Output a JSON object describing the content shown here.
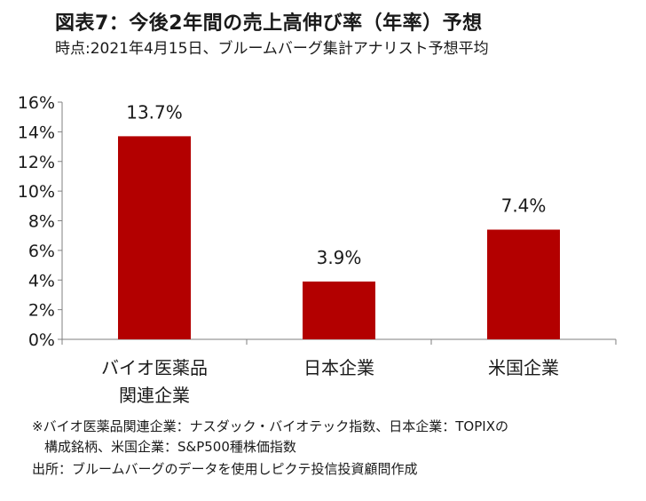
{
  "title": "図表7：今後2年間の売上高伸び率（年率）予想",
  "subtitle": "時点:2021年4月15日、ブルームバーグ集計アナリスト予想平均",
  "footnote_line1": "※バイオ医薬品関連企業：ナスダック・バイオテック指数、日本企業：TOPIXの",
  "footnote_line2": "構成銘柄、米国企業：S&P500種株価指数",
  "source": "出所：ブルームバーグのデータを使用しピクテ投信投資顧問作成",
  "colors": {
    "bar": "#b30000",
    "axis": "#7f7f7f"
  },
  "chart_data": {
    "type": "bar",
    "categories": [
      [
        "バイオ医薬品",
        "関連企業"
      ],
      [
        "日本企業"
      ],
      [
        "米国企業"
      ]
    ],
    "values": [
      13.7,
      3.9,
      7.4
    ],
    "data_labels": [
      "13.7%",
      "3.9%",
      "7.4%"
    ],
    "ylim": [
      0,
      16
    ],
    "yticks": [
      0,
      2,
      4,
      6,
      8,
      10,
      12,
      14,
      16
    ],
    "ytick_labels": [
      "0%",
      "2%",
      "4%",
      "6%",
      "8%",
      "10%",
      "12%",
      "14%",
      "16%"
    ],
    "grid": false,
    "legend": "none"
  }
}
